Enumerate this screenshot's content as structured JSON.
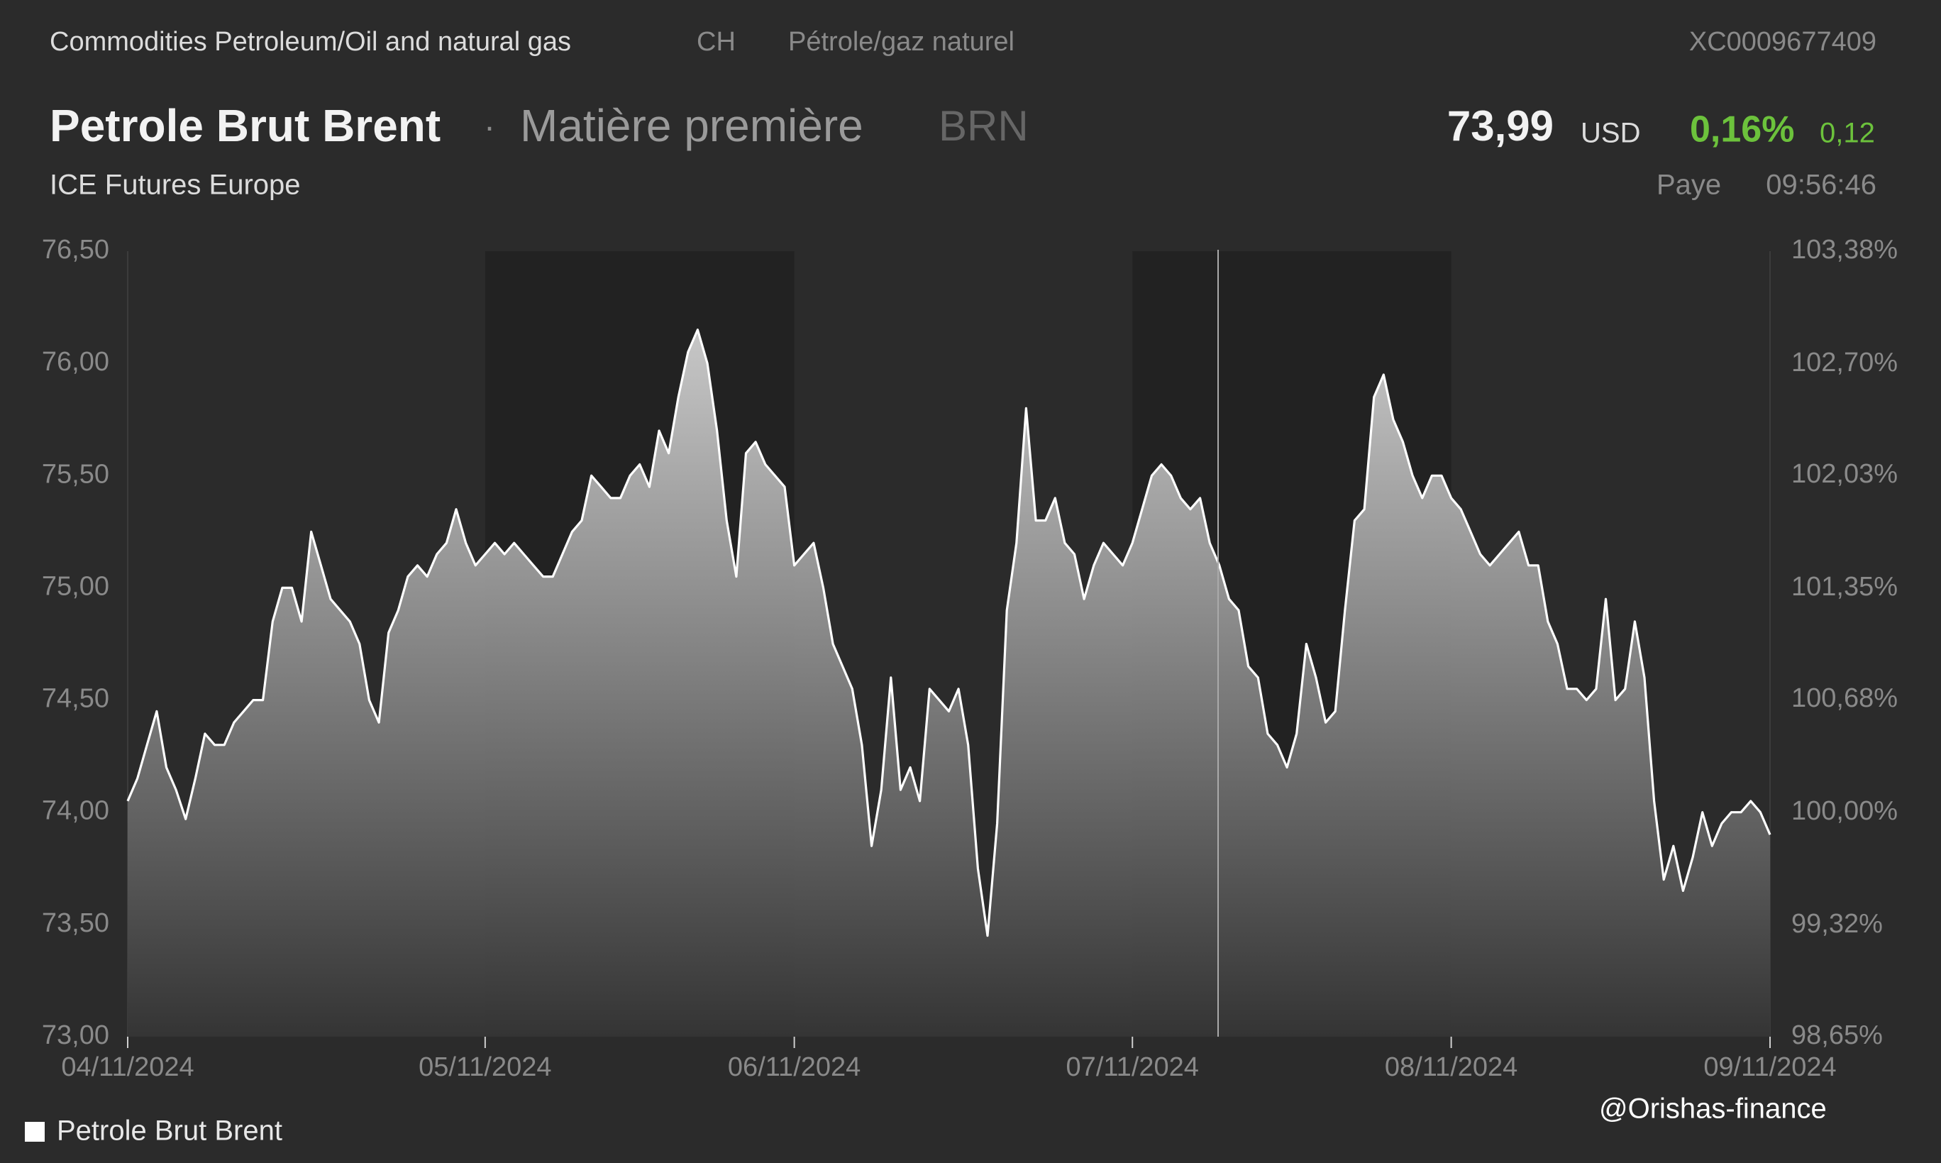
{
  "header": {
    "category": "Commodities Petroleum/Oil and natural gas",
    "country": "CH",
    "local_name": "Pétrole/gaz naturel",
    "isin": "XC0009677409",
    "name": "Petrole Brut Brent",
    "separator": "·",
    "asset_type": "Matière première",
    "symbol": "BRN",
    "price": "73,99",
    "currency": "USD",
    "change_pct": "0,16%",
    "change_abs": "0,12",
    "exchange": "ICE Futures Europe",
    "status": "Paye",
    "time": "09:56:46"
  },
  "watermark": "@Orishas-finance",
  "chart_data": {
    "type": "area",
    "categories": [
      "04/11/2024",
      null,
      null,
      null,
      null,
      null,
      null,
      null,
      null,
      null,
      null,
      null,
      null,
      null,
      null,
      null,
      null,
      null,
      null,
      null,
      null,
      null,
      null,
      null,
      null,
      null,
      null,
      null,
      null,
      null,
      null,
      null,
      null,
      null,
      null,
      null,
      null,
      "05/11/2024",
      null,
      null,
      null,
      null,
      null,
      null,
      null,
      null,
      null,
      null,
      null,
      null,
      null,
      null,
      null,
      null,
      null,
      null,
      null,
      null,
      null,
      null,
      null,
      null,
      null,
      null,
      null,
      null,
      null,
      null,
      null,
      "06/11/2024",
      null,
      null,
      null,
      null,
      null,
      null,
      null,
      null,
      null,
      null,
      null,
      null,
      null,
      null,
      null,
      null,
      null,
      null,
      null,
      null,
      null,
      null,
      null,
      null,
      null,
      null,
      null,
      null,
      null,
      null,
      null,
      null,
      null,
      null,
      "07/11/2024",
      null,
      null,
      null,
      null,
      null,
      null,
      null,
      null,
      null,
      null,
      null,
      null,
      null,
      null,
      null,
      null,
      null,
      null,
      null,
      null,
      null,
      null,
      null,
      null,
      null,
      null,
      null,
      null,
      null,
      null,
      null,
      null,
      "08/11/2024",
      null,
      null,
      null,
      null,
      null,
      null,
      null,
      null,
      null,
      null,
      null,
      null,
      null,
      null,
      null,
      null,
      null,
      null,
      null,
      null,
      null,
      null,
      null,
      null,
      null,
      null,
      null,
      null,
      null,
      null,
      null,
      null,
      "09/11/2024"
    ],
    "series": [
      {
        "name": "Petrole Brut Brent",
        "color": "#ffffff",
        "values": [
          74.05,
          74.15,
          74.3,
          74.45,
          74.2,
          74.1,
          73.97,
          74.15,
          74.35,
          74.3,
          74.3,
          74.4,
          74.45,
          74.5,
          74.5,
          74.85,
          75.0,
          75.0,
          74.85,
          75.25,
          75.1,
          74.95,
          74.9,
          74.85,
          74.75,
          74.5,
          74.4,
          74.8,
          74.9,
          75.05,
          75.1,
          75.05,
          75.15,
          75.2,
          75.35,
          75.2,
          75.1,
          75.15,
          75.2,
          75.15,
          75.2,
          75.15,
          75.1,
          75.05,
          75.05,
          75.15,
          75.25,
          75.3,
          75.5,
          75.45,
          75.4,
          75.4,
          75.5,
          75.55,
          75.45,
          75.7,
          75.6,
          75.85,
          76.05,
          76.15,
          76.0,
          75.7,
          75.3,
          75.05,
          75.6,
          75.65,
          75.55,
          75.5,
          75.45,
          75.1,
          75.15,
          75.2,
          75.0,
          74.75,
          74.65,
          74.55,
          74.3,
          73.85,
          74.1,
          74.6,
          74.1,
          74.2,
          74.05,
          74.55,
          74.5,
          74.45,
          74.55,
          74.3,
          73.75,
          73.45,
          73.95,
          74.9,
          75.2,
          75.8,
          75.3,
          75.3,
          75.4,
          75.2,
          75.15,
          74.95,
          75.1,
          75.2,
          75.15,
          75.1,
          75.2,
          75.35,
          75.5,
          75.55,
          75.5,
          75.4,
          75.35,
          75.4,
          75.2,
          75.1,
          74.95,
          74.9,
          74.65,
          74.6,
          74.35,
          74.3,
          74.2,
          74.35,
          74.75,
          74.6,
          74.4,
          74.45,
          74.9,
          75.3,
          75.35,
          75.85,
          75.95,
          75.75,
          75.65,
          75.5,
          75.4,
          75.5,
          75.5,
          75.4,
          75.35,
          75.25,
          75.15,
          75.1,
          75.15,
          75.2,
          75.25,
          75.1,
          75.1,
          74.85,
          74.75,
          74.55,
          74.55,
          74.5,
          74.55,
          74.95,
          74.5,
          74.55,
          74.85,
          74.6,
          74.05,
          73.7,
          73.85,
          73.65,
          73.8,
          74.0,
          73.85,
          73.95,
          74.0,
          74.0,
          74.05,
          74.0,
          73.9
        ]
      }
    ],
    "ylim": [
      73.0,
      76.5
    ],
    "yticks": [
      {
        "value": 73.0,
        "label": "73,00"
      },
      {
        "value": 73.5,
        "label": "73,50"
      },
      {
        "value": 74.0,
        "label": "74,00"
      },
      {
        "value": 74.5,
        "label": "74,50"
      },
      {
        "value": 75.0,
        "label": "75,00"
      },
      {
        "value": 75.5,
        "label": "75,50"
      },
      {
        "value": 76.0,
        "label": "76,00"
      },
      {
        "value": 76.5,
        "label": "76,50"
      }
    ],
    "y2lim": [
      98.65,
      103.38
    ],
    "y2ticks": [
      {
        "value": 98.65,
        "label": "98,65%"
      },
      {
        "value": 99.32,
        "label": "99,32%"
      },
      {
        "value": 100.0,
        "label": "100,00%"
      },
      {
        "value": 100.68,
        "label": "100,68%"
      },
      {
        "value": 101.35,
        "label": "101,35%"
      },
      {
        "value": 102.03,
        "label": "102,03%"
      },
      {
        "value": 102.7,
        "label": "102,70%"
      },
      {
        "value": 103.38,
        "label": "103,38%"
      }
    ],
    "grid": false
  }
}
